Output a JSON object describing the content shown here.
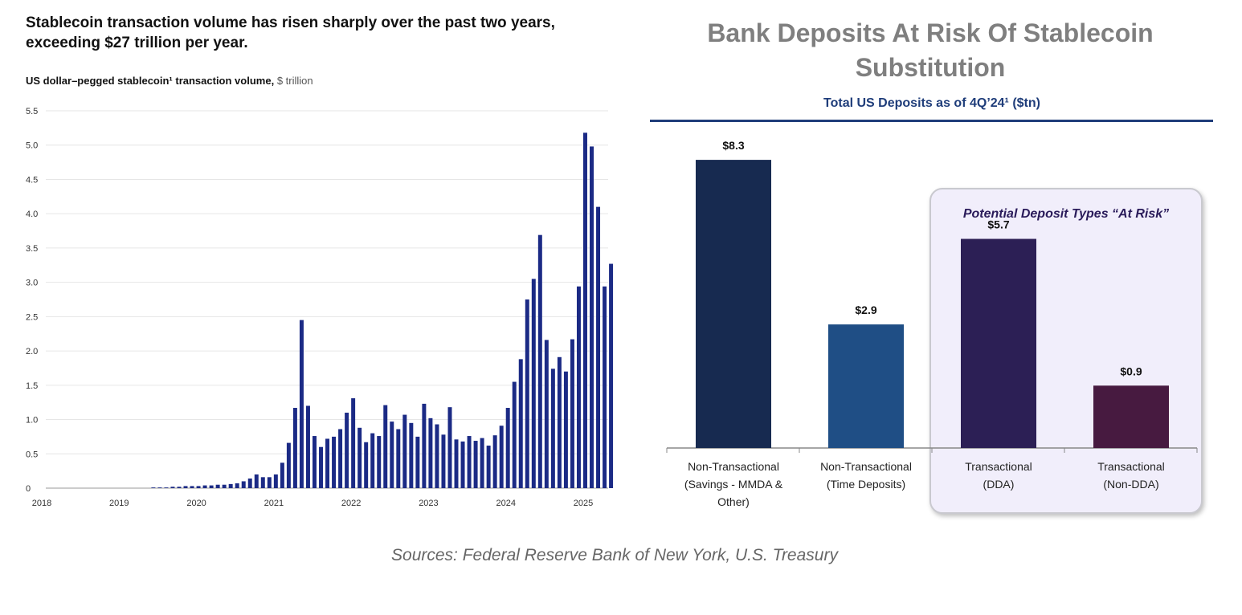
{
  "left_chart": {
    "title": "Stablecoin transaction volume has risen sharply over the past two years, exceeding $27 trillion per year.",
    "subtitle": "US dollar–pegged stablecoin¹ transaction volume,",
    "unit": "$ trillion"
  },
  "right_chart": {
    "title": "Bank Deposits At Risk Of Stablecoin Substitution",
    "subtitle": "Total US Deposits as of 4Q’24¹ ($tn)",
    "risk_label": "Potential Deposit Types “At Risk”"
  },
  "sources": "Sources: Federal Reserve Bank of New York, U.S. Treasury",
  "chart_data": [
    {
      "type": "bar",
      "title": "Stablecoin transaction volume has risen sharply over the past two years, exceeding $27 trillion per year.",
      "ylabel": "US dollar–pegged stablecoin¹ transaction volume, $ trillion",
      "ylim": [
        0,
        5.5
      ],
      "yticks": [
        "0",
        "0.5",
        "1.0",
        "1.5",
        "2.0",
        "2.5",
        "3.0",
        "3.5",
        "4.0",
        "4.5",
        "5.0",
        "5.5"
      ],
      "xticks": [
        "2018",
        "2019",
        "2020",
        "2021",
        "2022",
        "2023",
        "2024",
        "2025"
      ],
      "grid": true,
      "color": "#1b2a85",
      "x_start": "2019-01",
      "values": [
        0,
        0,
        0,
        0,
        0,
        0.01,
        0.01,
        0.01,
        0.02,
        0.02,
        0.03,
        0.03,
        0.03,
        0.04,
        0.04,
        0.05,
        0.05,
        0.06,
        0.07,
        0.1,
        0.14,
        0.2,
        0.16,
        0.16,
        0.2,
        0.37,
        0.66,
        1.17,
        2.45,
        1.2,
        0.76,
        0.6,
        0.72,
        0.75,
        0.86,
        1.1,
        1.31,
        0.88,
        0.67,
        0.8,
        0.76,
        1.21,
        0.97,
        0.86,
        1.07,
        0.95,
        0.75,
        1.23,
        1.02,
        0.93,
        0.78,
        1.18,
        0.71,
        0.68,
        0.76,
        0.69,
        0.73,
        0.62,
        0.77,
        0.91,
        1.17,
        1.55,
        1.88,
        2.75,
        3.05,
        3.69,
        2.16,
        1.74,
        1.91,
        1.7,
        2.17,
        2.94,
        5.18,
        4.98,
        4.1,
        2.94,
        3.27
      ]
    },
    {
      "type": "bar",
      "title": "Bank Deposits At Risk Of Stablecoin Substitution",
      "subtitle": "Total US Deposits as of 4Q’24¹ ($tn)",
      "categories": [
        "Non-Transactional (Savings - MMDA & Other)",
        "Non-Transactional (Time Deposits)",
        "Transactional (DDA)",
        "Transactional (Non-DDA)"
      ],
      "category_lines": [
        [
          "Non-Transactional",
          "(Savings - MMDA &",
          "Other)"
        ],
        [
          "Non-Transactional",
          "(Time Deposits)"
        ],
        [
          "Transactional",
          "(DDA)"
        ],
        [
          "Transactional",
          "(Non-DDA)"
        ]
      ],
      "values": [
        8.3,
        2.9,
        5.7,
        0.9
      ],
      "labels": [
        "$8.3",
        "$2.9",
        "$5.7",
        "$0.9"
      ],
      "bar_heights": [
        4.85,
        2.08,
        3.52,
        1.05
      ],
      "colors": [
        "#172a50",
        "#1f4e85",
        "#2c1f55",
        "#471a40"
      ]
    }
  ]
}
